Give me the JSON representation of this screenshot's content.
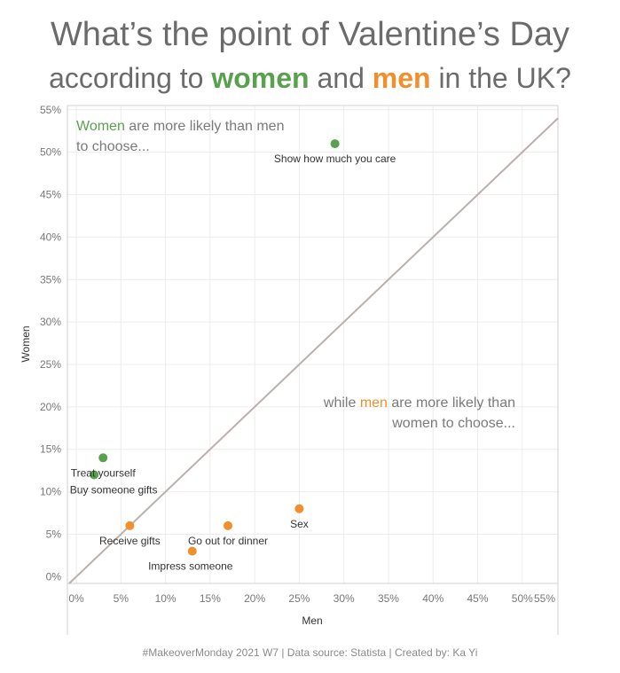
{
  "title": {
    "line1": "What’s the point of Valentine’s Day",
    "line2_prefix": "according to ",
    "line2_women": "women",
    "line2_mid": " and ",
    "line2_men": "men",
    "line2_suffix": " in the UK?"
  },
  "annotations": {
    "women_word": "Women",
    "women_rest": " are more likely than men to choose...",
    "men_prefix": "while ",
    "men_word": "men",
    "men_rest": " are more likely than women to choose..."
  },
  "footer": "#MakeoverMonday 2021 W7 | Data source: Statista | Created by: Ka Yi",
  "colors": {
    "women": "#59a14f",
    "men": "#f28e2b",
    "diagonal": "#bab0ac",
    "grid": "#ececec",
    "axis": "#d0d0d0"
  },
  "chart_data": {
    "type": "scatter",
    "xlabel": "Men",
    "ylabel": "Women",
    "xlim": [
      -0.01,
      0.54
    ],
    "ylim": [
      -0.008,
      0.555
    ],
    "x_ticks": [
      0,
      0.05,
      0.1,
      0.15,
      0.2,
      0.25,
      0.3,
      0.35,
      0.4,
      0.45,
      0.5,
      0.55
    ],
    "x_tick_labels": [
      "0%",
      "5%",
      "10%",
      "15%",
      "20%",
      "25%",
      "30%",
      "35%",
      "40%",
      "45%",
      "50%",
      "55%"
    ],
    "y_ticks": [
      0,
      0.05,
      0.1,
      0.15,
      0.2,
      0.25,
      0.3,
      0.35,
      0.4,
      0.45,
      0.5,
      0.55
    ],
    "y_tick_labels": [
      "0%",
      "5%",
      "10%",
      "15%",
      "20%",
      "25%",
      "30%",
      "35%",
      "40%",
      "45%",
      "50%",
      "55%"
    ],
    "diagonal": true,
    "grid": true,
    "points": [
      {
        "label": "Show how much you care",
        "x": 0.29,
        "y": 0.51,
        "group": "women"
      },
      {
        "label": "Treat yourself",
        "x": 0.03,
        "y": 0.14,
        "group": "women"
      },
      {
        "label": "Buy someone gifts",
        "x": 0.02,
        "y": 0.12,
        "group": "women"
      },
      {
        "label": "Sex",
        "x": 0.25,
        "y": 0.08,
        "group": "men"
      },
      {
        "label": "Go out for dinner",
        "x": 0.17,
        "y": 0.06,
        "group": "men"
      },
      {
        "label": "Receive gifts",
        "x": 0.06,
        "y": 0.06,
        "group": "men"
      },
      {
        "label": "Impress someone",
        "x": 0.13,
        "y": 0.03,
        "group": "men"
      }
    ]
  }
}
